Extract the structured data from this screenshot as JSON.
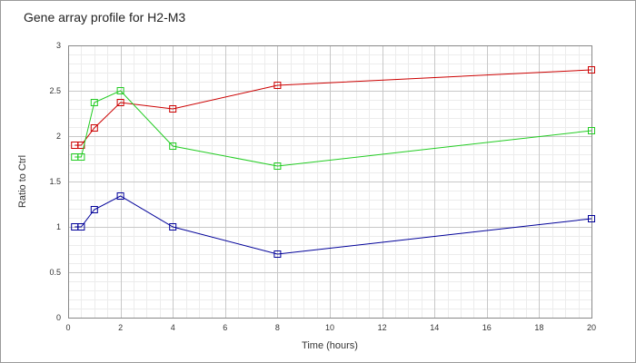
{
  "chart_data": {
    "type": "line",
    "title": "Gene array profile for H2-M3",
    "xlabel": "Time (hours)",
    "ylabel": "Ratio to Ctrl",
    "xlim": [
      0,
      20
    ],
    "ylim": [
      0,
      3
    ],
    "x_ticks": [
      0,
      2,
      4,
      6,
      8,
      10,
      12,
      14,
      16,
      18,
      20
    ],
    "y_ticks": [
      0,
      0.5,
      1,
      1.5,
      2,
      2.5,
      3
    ],
    "y_tick_labels": [
      "0",
      "0.5",
      "1",
      "1.5",
      "2",
      "2.5",
      "3"
    ],
    "grid": true,
    "legend": "none",
    "series": [
      {
        "color": "#cc0000",
        "points": [
          [
            0.25,
            1.9
          ],
          [
            0.5,
            1.9
          ],
          [
            1,
            2.09
          ],
          [
            2,
            2.37
          ],
          [
            4,
            2.3
          ],
          [
            8,
            2.56
          ],
          [
            20,
            2.73
          ]
        ]
      },
      {
        "color": "#22cc22",
        "points": [
          [
            0.25,
            1.77
          ],
          [
            0.5,
            1.77
          ],
          [
            1,
            2.37
          ],
          [
            2,
            2.5
          ],
          [
            4,
            1.89
          ],
          [
            8,
            1.67
          ],
          [
            20,
            2.06
          ]
        ]
      },
      {
        "color": "#000099",
        "points": [
          [
            0.25,
            1.0
          ],
          [
            0.5,
            1.0
          ],
          [
            1,
            1.19
          ],
          [
            2,
            1.34
          ],
          [
            4,
            1.0
          ],
          [
            8,
            0.7
          ],
          [
            20,
            1.09
          ]
        ]
      }
    ]
  }
}
